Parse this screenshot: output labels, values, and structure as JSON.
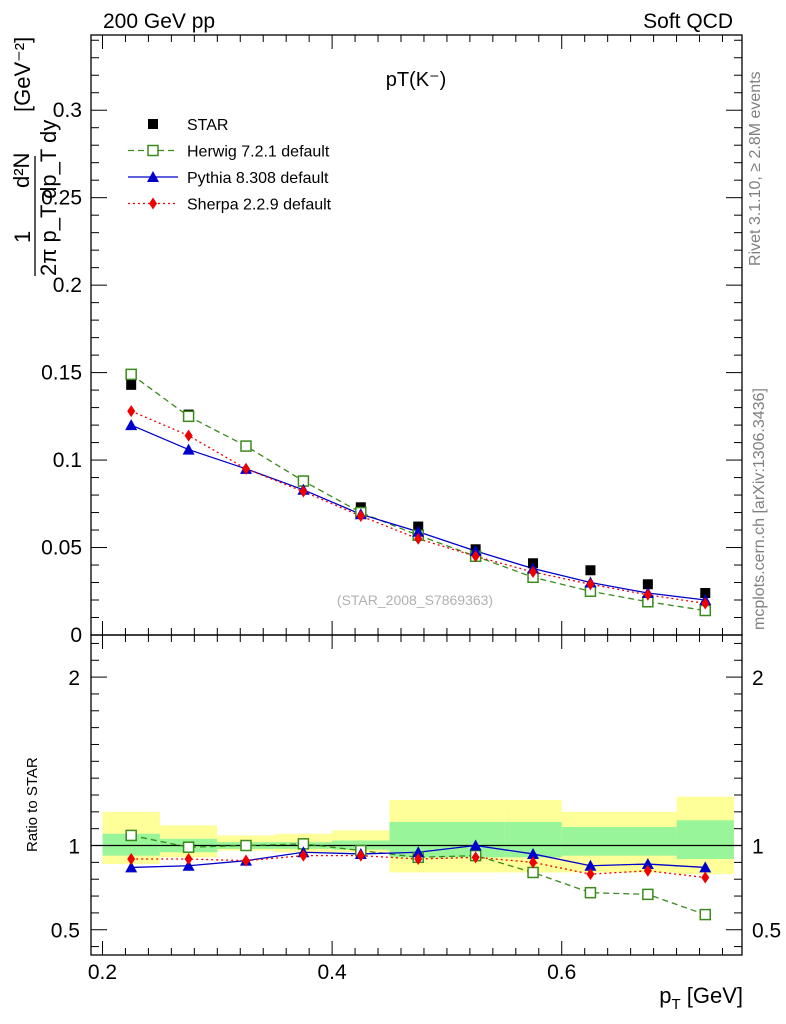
{
  "header": {
    "left_label": "200 GeV pp",
    "right_label": "Soft QCD"
  },
  "side_labels": {
    "top": "Rivet 3.1.10, ≥ 2.8M events",
    "bottom": "mcplots.cern.ch [arXiv:1306.3436]"
  },
  "chart_data": [
    {
      "type": "scatter",
      "title": "pT(K⁻)",
      "watermark": "(STAR_2008_S7869363)",
      "ylabel": {
        "main": "d²N",
        "denominator": "2π p_T dp_T dy",
        "prefix": "1",
        "unit": "[GeV⁻²]"
      },
      "xlim": [
        0.19,
        0.757
      ],
      "ylim": [
        0,
        0.343
      ],
      "x_ticks": [
        0.2,
        0.4,
        0.6
      ],
      "y_ticks": [
        {
          "value": 0,
          "label": "0"
        },
        {
          "value": 0.05,
          "label": "0.05"
        },
        {
          "value": 0.1,
          "label": "0.1"
        },
        {
          "value": 0.15,
          "label": "0.15"
        },
        {
          "value": 0.2,
          "label": "0.2"
        },
        {
          "value": 0.25,
          "label": "0.25"
        },
        {
          "value": 0.3,
          "label": "0.3"
        }
      ],
      "x": [
        0.225,
        0.275,
        0.325,
        0.375,
        0.425,
        0.475,
        0.525,
        0.575,
        0.625,
        0.675,
        0.725
      ],
      "series": [
        {
          "name": "STAR",
          "color": "#000000",
          "marker": "square",
          "line": "none",
          "values": [
            0.143,
            0.126,
            0.108,
            0.088,
            0.073,
            0.062,
            0.049,
            0.041,
            0.037,
            0.029,
            0.024
          ]
        },
        {
          "name": "Herwig 7.2.1 default",
          "color": "#3a8a1c",
          "marker": "open-square",
          "line": "dashed",
          "values": [
            0.149,
            0.125,
            0.108,
            0.088,
            0.07,
            0.057,
            0.045,
            0.033,
            0.025,
            0.019,
            0.014
          ]
        },
        {
          "name": "Pythia 8.308 default",
          "color": "#0000cc",
          "marker": "triangle",
          "line": "solid",
          "values": [
            0.12,
            0.106,
            0.095,
            0.083,
            0.069,
            0.059,
            0.048,
            0.038,
            0.03,
            0.024,
            0.02
          ]
        },
        {
          "name": "Sherpa 2.2.9 default",
          "color": "#ee0000",
          "marker": "diamond",
          "line": "dotted",
          "values": [
            0.128,
            0.114,
            0.095,
            0.082,
            0.068,
            0.055,
            0.045,
            0.036,
            0.029,
            0.023,
            0.018
          ]
        }
      ],
      "legend_position": "top-left"
    },
    {
      "type": "scatter",
      "ylabel": "Ratio to STAR",
      "xlabel": "p_T [GeV]",
      "xlim": [
        0.19,
        0.757
      ],
      "ylim": [
        0.35,
        2.25
      ],
      "x_ticks": [
        0.2,
        0.4,
        0.6
      ],
      "y_ticks": [
        {
          "value": 0.5,
          "label": "0.5"
        },
        {
          "value": 1,
          "label": "1"
        },
        {
          "value": 2,
          "label": "2"
        }
      ],
      "reference_line": 1,
      "bins": [
        {
          "lo": 0.2,
          "hi": 0.25,
          "inner": [
            0.94,
            1.07
          ],
          "outer": [
            0.89,
            1.2
          ]
        },
        {
          "lo": 0.25,
          "hi": 0.3,
          "inner": [
            0.96,
            1.04
          ],
          "outer": [
            0.93,
            1.12
          ]
        },
        {
          "lo": 0.3,
          "hi": 0.35,
          "inner": [
            0.98,
            1.02
          ],
          "outer": [
            0.97,
            1.06
          ]
        },
        {
          "lo": 0.35,
          "hi": 0.4,
          "inner": [
            0.98,
            1.02
          ],
          "outer": [
            0.96,
            1.07
          ]
        },
        {
          "lo": 0.4,
          "hi": 0.45,
          "inner": [
            0.975,
            1.03
          ],
          "outer": [
            0.96,
            1.09
          ]
        },
        {
          "lo": 0.45,
          "hi": 0.55,
          "inner": [
            0.93,
            1.14
          ],
          "outer": [
            0.84,
            1.27
          ]
        },
        {
          "lo": 0.55,
          "hi": 0.6,
          "inner": [
            0.93,
            1.14
          ],
          "outer": [
            0.84,
            1.27
          ]
        },
        {
          "lo": 0.6,
          "hi": 0.7,
          "inner": [
            0.94,
            1.11
          ],
          "outer": [
            0.84,
            1.2
          ]
        },
        {
          "lo": 0.7,
          "hi": 0.75,
          "inner": [
            0.92,
            1.15
          ],
          "outer": [
            0.83,
            1.29
          ]
        }
      ],
      "x": [
        0.225,
        0.275,
        0.325,
        0.375,
        0.425,
        0.475,
        0.525,
        0.575,
        0.625,
        0.675,
        0.725
      ],
      "series": [
        {
          "name": "Herwig 7.2.1 default",
          "color": "#3a8a1c",
          "marker": "open-square",
          "line": "dashed",
          "values": [
            1.06,
            0.99,
            1.0,
            1.01,
            0.97,
            0.93,
            0.94,
            0.84,
            0.72,
            0.71,
            0.59
          ]
        },
        {
          "name": "Pythia 8.308 default",
          "color": "#0000cc",
          "marker": "triangle",
          "line": "solid",
          "values": [
            0.87,
            0.88,
            0.91,
            0.96,
            0.95,
            0.96,
            1.0,
            0.95,
            0.88,
            0.89,
            0.87
          ]
        },
        {
          "name": "Sherpa 2.2.9 default",
          "color": "#ee0000",
          "marker": "diamond",
          "line": "dotted",
          "values": [
            0.92,
            0.92,
            0.91,
            0.94,
            0.94,
            0.92,
            0.93,
            0.9,
            0.83,
            0.85,
            0.81
          ]
        }
      ]
    }
  ]
}
